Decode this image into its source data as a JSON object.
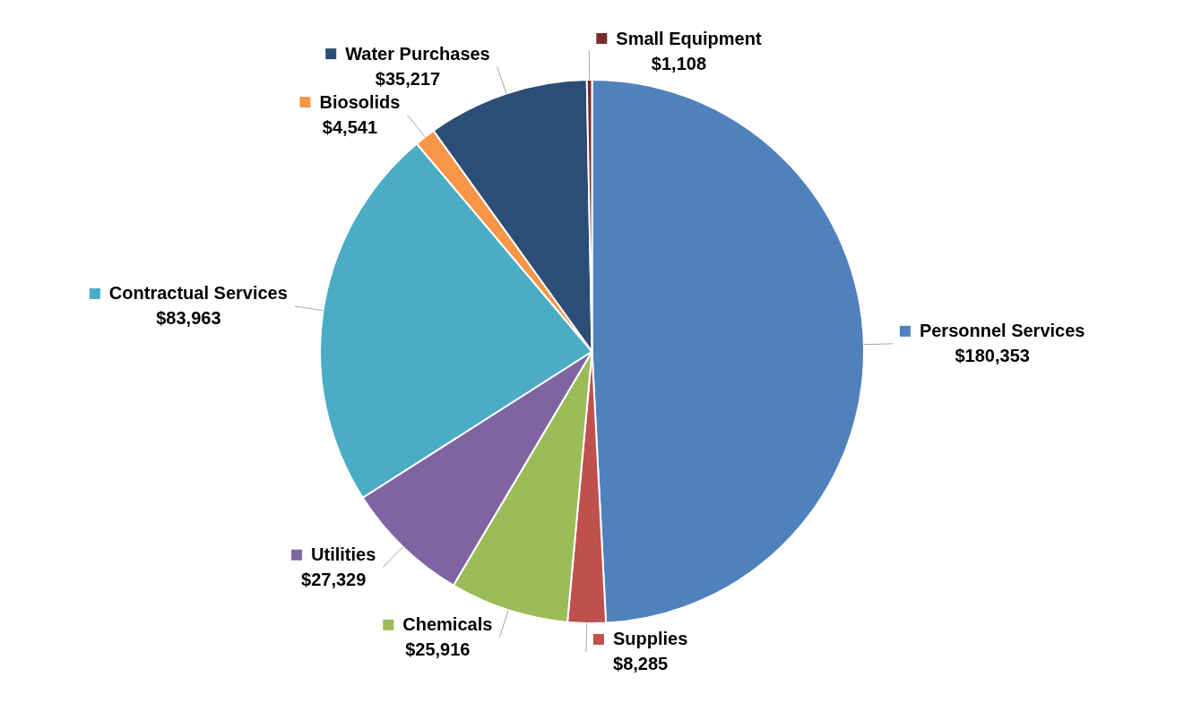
{
  "chart_data": {
    "type": "pie",
    "categories": [
      "Personnel Services",
      "Supplies",
      "Chemicals",
      "Utilities",
      "Contractual Services",
      "Biosolids",
      "Water Purchases",
      "Small Equipment"
    ],
    "values": [
      180353,
      8285,
      25916,
      27329,
      83963,
      4541,
      35217,
      1108
    ],
    "value_labels": [
      "$180,353",
      "$8,285",
      "$25,916",
      "$27,329",
      "$83,963",
      "$4,541",
      "$35,217",
      "$1,108"
    ],
    "colors": [
      "#4f81bd",
      "#c0504d",
      "#9bbb59",
      "#8064a2",
      "#4bacc6",
      "#f79646",
      "#2c4d75",
      "#772c2a"
    ],
    "legend": "right"
  }
}
